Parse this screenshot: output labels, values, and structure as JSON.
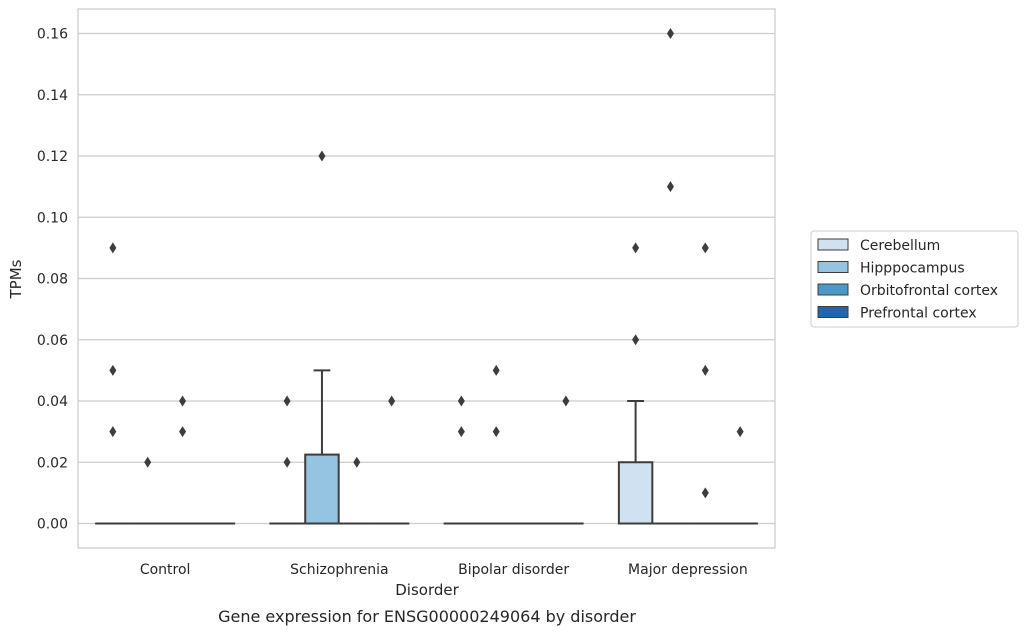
{
  "caption": "Gene expression for ENSG00000249064 by disorder",
  "chart_data": {
    "type": "box",
    "xlabel": "Disorder",
    "ylabel": "TPMs",
    "ylim": [
      -0.008,
      0.168
    ],
    "yticks": [
      0.0,
      0.02,
      0.04,
      0.06,
      0.08,
      0.1,
      0.12,
      0.14,
      0.16
    ],
    "ytick_labels": [
      "0.00",
      "0.02",
      "0.04",
      "0.06",
      "0.08",
      "0.10",
      "0.12",
      "0.14",
      "0.16"
    ],
    "grid": "horizontal",
    "legend_position": "right",
    "categories": [
      "Control",
      "Schizophrenia",
      "Bipolar disorder",
      "Major depression"
    ],
    "series": [
      {
        "name": "Cerebellum",
        "color": "#d0e1f2",
        "boxes": [
          {
            "q1": 0,
            "median": 0,
            "q3": 0,
            "whislo": 0,
            "whishi": 0,
            "fliers": [
              0.03,
              0.05,
              0.09
            ]
          },
          {
            "q1": 0,
            "median": 0,
            "q3": 0,
            "whislo": 0,
            "whishi": 0,
            "fliers": [
              0.02,
              0.04
            ]
          },
          {
            "q1": 0,
            "median": 0,
            "q3": 0,
            "whislo": 0,
            "whishi": 0,
            "fliers": [
              0.03,
              0.04
            ]
          },
          {
            "q1": 0,
            "median": 0,
            "q3": 0.02,
            "whislo": 0,
            "whishi": 0.04,
            "fliers": [
              0.06,
              0.09
            ]
          }
        ]
      },
      {
        "name": "Hipppocampus",
        "color": "#94c4df",
        "boxes": [
          {
            "q1": 0,
            "median": 0,
            "q3": 0,
            "whislo": 0,
            "whishi": 0,
            "fliers": [
              0.02
            ]
          },
          {
            "q1": 0,
            "median": 0,
            "q3": 0.0225,
            "whislo": 0,
            "whishi": 0.05,
            "fliers": [
              0.12
            ]
          },
          {
            "q1": 0,
            "median": 0,
            "q3": 0,
            "whislo": 0,
            "whishi": 0,
            "fliers": [
              0.03,
              0.05
            ]
          },
          {
            "q1": 0,
            "median": 0,
            "q3": 0,
            "whislo": 0,
            "whishi": 0,
            "fliers": [
              0.11,
              0.16
            ]
          }
        ]
      },
      {
        "name": "Orbitofrontal cortex",
        "color": "#4b98c9",
        "boxes": [
          {
            "q1": 0,
            "median": 0,
            "q3": 0,
            "whislo": 0,
            "whishi": 0,
            "fliers": [
              0.03,
              0.04
            ]
          },
          {
            "q1": 0,
            "median": 0,
            "q3": 0,
            "whislo": 0,
            "whishi": 0,
            "fliers": [
              0.02
            ]
          },
          {
            "q1": 0,
            "median": 0,
            "q3": 0,
            "whislo": 0,
            "whishi": 0,
            "fliers": []
          },
          {
            "q1": 0,
            "median": 0,
            "q3": 0,
            "whislo": 0,
            "whishi": 0,
            "fliers": [
              0.01,
              0.05,
              0.09
            ]
          }
        ]
      },
      {
        "name": "Prefrontal cortex",
        "color": "#2166ac",
        "boxes": [
          {
            "q1": 0,
            "median": 0,
            "q3": 0,
            "whislo": 0,
            "whishi": 0,
            "fliers": []
          },
          {
            "q1": 0,
            "median": 0,
            "q3": 0,
            "whislo": 0,
            "whishi": 0,
            "fliers": [
              0.04
            ]
          },
          {
            "q1": 0,
            "median": 0,
            "q3": 0,
            "whislo": 0,
            "whishi": 0,
            "fliers": [
              0.04
            ]
          },
          {
            "q1": 0,
            "median": 0,
            "q3": 0,
            "whislo": 0,
            "whishi": 0,
            "fliers": [
              0.03
            ]
          }
        ]
      }
    ]
  }
}
